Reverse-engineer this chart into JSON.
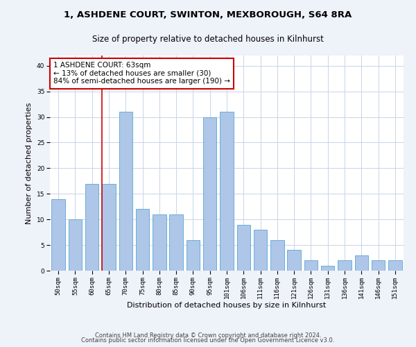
{
  "title": "1, ASHDENE COURT, SWINTON, MEXBOROUGH, S64 8RA",
  "subtitle": "Size of property relative to detached houses in Kilnhurst",
  "xlabel": "Distribution of detached houses by size in Kilnhurst",
  "ylabel": "Number of detached properties",
  "categories": [
    "50sqm",
    "55sqm",
    "60sqm",
    "65sqm",
    "70sqm",
    "75sqm",
    "80sqm",
    "85sqm",
    "90sqm",
    "95sqm",
    "101sqm",
    "106sqm",
    "111sqm",
    "116sqm",
    "121sqm",
    "126sqm",
    "131sqm",
    "136sqm",
    "141sqm",
    "146sqm",
    "151sqm"
  ],
  "values": [
    14,
    10,
    17,
    17,
    31,
    12,
    11,
    11,
    6,
    30,
    31,
    9,
    8,
    6,
    4,
    2,
    1,
    2,
    3,
    2,
    2
  ],
  "bar_color": "#aec6e8",
  "bar_edge_color": "#6aaed6",
  "bar_width": 0.8,
  "vline_x": 2.6,
  "vline_color": "#cc0000",
  "annotation_text": "1 ASHDENE COURT: 63sqm\n← 13% of detached houses are smaller (30)\n84% of semi-detached houses are larger (190) →",
  "annotation_box_color": "#ffffff",
  "annotation_box_edge_color": "#cc0000",
  "ylim": [
    0,
    42
  ],
  "yticks": [
    0,
    5,
    10,
    15,
    20,
    25,
    30,
    35,
    40
  ],
  "footer1": "Contains HM Land Registry data © Crown copyright and database right 2024.",
  "footer2": "Contains public sector information licensed under the Open Government Licence v3.0.",
  "bg_color": "#eef2f9",
  "plot_bg_color": "#ffffff",
  "grid_color": "#c8d4e8",
  "title_fontsize": 9.5,
  "subtitle_fontsize": 8.5,
  "ylabel_fontsize": 8,
  "xlabel_fontsize": 8,
  "tick_fontsize": 6.5,
  "annot_fontsize": 7.5,
  "footer_fontsize": 6
}
